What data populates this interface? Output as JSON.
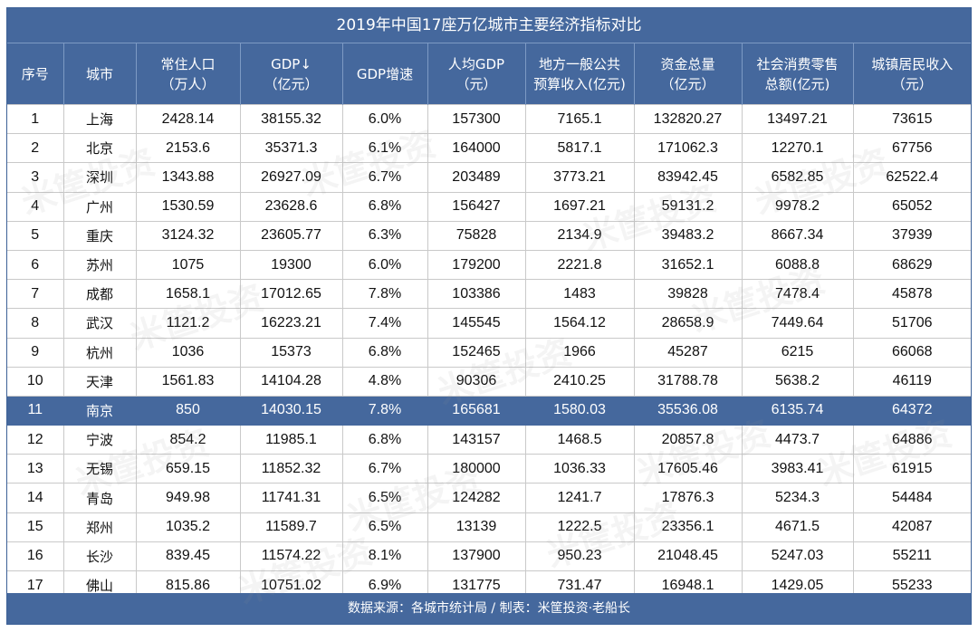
{
  "title": "2019年中国17座万亿城市主要经济指标对比",
  "headers": [
    [
      "序号",
      ""
    ],
    [
      "城市",
      ""
    ],
    [
      "常住人口",
      "（万人）"
    ],
    [
      "GDP↓",
      "（亿元）"
    ],
    [
      "GDP增速",
      ""
    ],
    [
      "人均GDP",
      "（元）"
    ],
    [
      "地方一般公共",
      "预算收入(亿元)"
    ],
    [
      "资金总量",
      "（亿元）"
    ],
    [
      "社会消费零售",
      "总额(亿元)"
    ],
    [
      "城镇居民收入",
      "（元）"
    ]
  ],
  "rows": [
    [
      "1",
      "上海",
      "2428.14",
      "38155.32",
      "6.0%",
      "157300",
      "7165.1",
      "132820.27",
      "13497.21",
      "73615"
    ],
    [
      "2",
      "北京",
      "2153.6",
      "35371.3",
      "6.1%",
      "164000",
      "5817.1",
      "171062.3",
      "12270.1",
      "67756"
    ],
    [
      "3",
      "深圳",
      "1343.88",
      "26927.09",
      "6.7%",
      "203489",
      "3773.21",
      "83942.45",
      "6582.85",
      "62522.4"
    ],
    [
      "4",
      "广州",
      "1530.59",
      "23628.6",
      "6.8%",
      "156427",
      "1697.21",
      "59131.2",
      "9978.2",
      "65052"
    ],
    [
      "5",
      "重庆",
      "3124.32",
      "23605.77",
      "6.3%",
      "75828",
      "2134.9",
      "39483.2",
      "8667.34",
      "37939"
    ],
    [
      "6",
      "苏州",
      "1075",
      "19300",
      "6.0%",
      "179200",
      "2221.8",
      "31652.1",
      "6088.8",
      "68629"
    ],
    [
      "7",
      "成都",
      "1658.1",
      "17012.65",
      "7.8%",
      "103386",
      "1483",
      "39828",
      "7478.4",
      "45878"
    ],
    [
      "8",
      "武汉",
      "1121.2",
      "16223.21",
      "7.4%",
      "145545",
      "1564.12",
      "28658.9",
      "7449.64",
      "51706"
    ],
    [
      "9",
      "杭州",
      "1036",
      "15373",
      "6.8%",
      "152465",
      "1966",
      "45287",
      "6215",
      "66068"
    ],
    [
      "10",
      "天津",
      "1561.83",
      "14104.28",
      "4.8%",
      "90306",
      "2410.25",
      "31788.78",
      "5638.2",
      "46119"
    ],
    [
      "11",
      "南京",
      "850",
      "14030.15",
      "7.8%",
      "165681",
      "1580.03",
      "35536.08",
      "6135.74",
      "64372"
    ],
    [
      "12",
      "宁波",
      "854.2",
      "11985.1",
      "6.8%",
      "143157",
      "1468.5",
      "20857.8",
      "4473.7",
      "64886"
    ],
    [
      "13",
      "无锡",
      "659.15",
      "11852.32",
      "6.7%",
      "180000",
      "1036.33",
      "17605.46",
      "3983.41",
      "61915"
    ],
    [
      "14",
      "青岛",
      "949.98",
      "11741.31",
      "6.5%",
      "124282",
      "1241.7",
      "17876.3",
      "5234.3",
      "54484"
    ],
    [
      "15",
      "郑州",
      "1035.2",
      "11589.7",
      "6.5%",
      "13139",
      "1222.5",
      "23356.1",
      "4671.5",
      "42087"
    ],
    [
      "16",
      "长沙",
      "839.45",
      "11574.22",
      "8.1%",
      "137900",
      "950.23",
      "21048.45",
      "5247.03",
      "55211"
    ],
    [
      "17",
      "佛山",
      "815.86",
      "10751.02",
      "6.9%",
      "131775",
      "731.47",
      "16948.1",
      "1429.05",
      "55233"
    ]
  ],
  "highlighted_row": 10,
  "footer": "数据来源：各城市统计局 / 制表：米筐投资·老船长",
  "watermark": "米筐投资",
  "colors": {
    "header": "#45689d",
    "highlight": "#45689d",
    "grid": "#c9c9c9"
  }
}
